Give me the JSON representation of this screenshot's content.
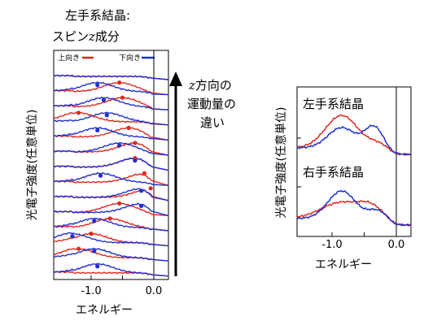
{
  "chart_data": [
    {
      "type": "line",
      "title": "左手系結晶:",
      "subtitle": {
        "spin_prefix": "スピン",
        "spin_var": "z",
        "spin_suffix": "成分"
      },
      "xlabel": "エネルギー",
      "ylabel": "光電子強度(任意単位)",
      "x_ticks": [
        -1.0,
        0.0
      ],
      "x_tick_labels": [
        "-1.0",
        "0.0"
      ],
      "xlim": [
        -1.55,
        0.15
      ],
      "legend": [
        {
          "label": "上向き",
          "color": "#e0281e"
        },
        {
          "label": "下向き",
          "color": "#1f2fd0"
        }
      ],
      "legend_position": "top",
      "stack_count": 14,
      "peak_markers": {
        "up": [
          null,
          -0.55,
          -0.5,
          -1.2,
          -0.4,
          -0.3,
          -0.3,
          -0.15,
          -0.05,
          -0.55,
          -0.7,
          -1.0,
          -1.2,
          null
        ],
        "down": [
          null,
          -0.9,
          -0.8,
          -0.75,
          -0.9,
          -0.55,
          -0.3,
          -0.85,
          -0.2,
          -0.2,
          -0.95,
          -1.3,
          -0.95,
          -0.9
        ]
      },
      "annotation": {
        "var": "z",
        "line1": "方向の",
        "line2": "運動量の",
        "line3": "違い"
      }
    },
    {
      "type": "line",
      "xlabel": "エネルギー",
      "ylabel": "光電子強度(任意単位)",
      "x_ticks": [
        -1.0,
        0.0
      ],
      "x_tick_labels": [
        "-1.0",
        "0.0"
      ],
      "xlim": [
        -1.55,
        0.15
      ],
      "panels": [
        {
          "label": "左手系結晶"
        },
        {
          "label": "右手系結晶"
        }
      ]
    }
  ],
  "colors": {
    "up": "#e0281e",
    "down": "#1f2fd0",
    "axis": "#000000"
  }
}
